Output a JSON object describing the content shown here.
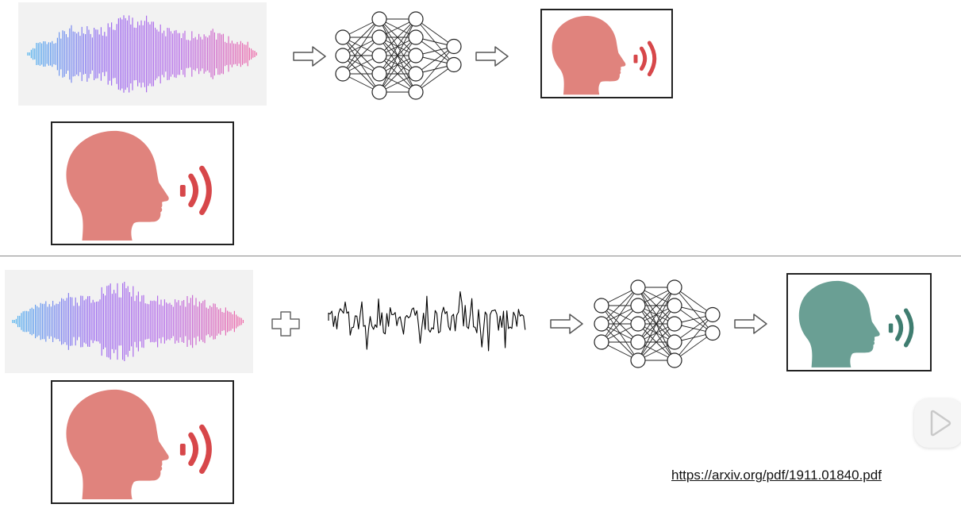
{
  "colors": {
    "target_speaker": "#e0837d",
    "target_wave": "#d7474a",
    "converted_speaker": "#6a9f94",
    "converted_wave": "#3f7d70",
    "gradient": [
      "#4fb3ee",
      "#9b6cf0",
      "#b86ee8",
      "#ee6aa8"
    ]
  },
  "icons": [
    "speech-waveform-icon",
    "neural-network-icon",
    "speaker-head-icon",
    "arrow-icon",
    "plus-icon",
    "noise-signal-icon",
    "play-icon"
  ],
  "footer": {
    "source_url": "https://arxiv.org/pdf/1911.01840.pdf"
  }
}
